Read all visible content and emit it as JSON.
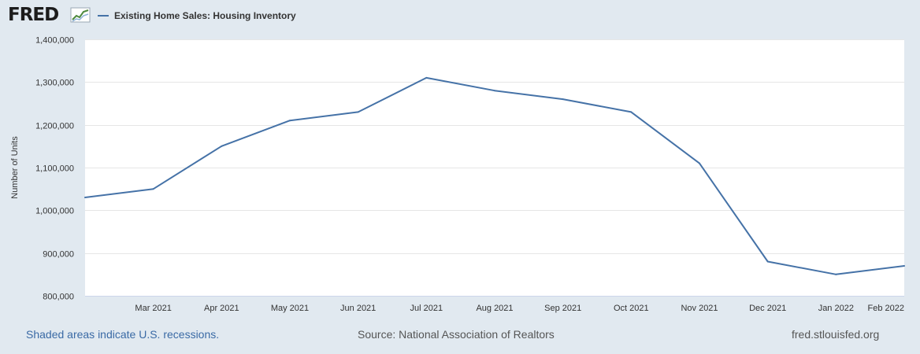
{
  "header": {
    "logo_text": "FRED",
    "logo_icon": "line-chart-icon"
  },
  "colors": {
    "series": "#4572a7",
    "background": "#e1e9f0",
    "plot_background": "#ffffff",
    "gridline": "#e6e6e6",
    "link": "#3a6aa5"
  },
  "chart_data": {
    "type": "line",
    "title": "",
    "xlabel": "",
    "ylabel": "Number of Units",
    "x": [
      "2021-02",
      "2021-03",
      "2021-04",
      "2021-05",
      "2021-06",
      "2021-07",
      "2021-08",
      "2021-09",
      "2021-10",
      "2021-11",
      "2021-12",
      "2022-01",
      "2022-02"
    ],
    "x_tick_labels": [
      "Mar 2021",
      "Apr 2021",
      "May 2021",
      "Jun 2021",
      "Jul 2021",
      "Aug 2021",
      "Sep 2021",
      "Oct 2021",
      "Nov 2021",
      "Dec 2021",
      "Jan 2022",
      "Feb 2022"
    ],
    "series": [
      {
        "name": "Existing Home Sales: Housing Inventory",
        "values": [
          1030000,
          1050000,
          1150000,
          1210000,
          1230000,
          1310000,
          1280000,
          1260000,
          1230000,
          1110000,
          880000,
          850000,
          870000
        ]
      }
    ],
    "ylim": [
      800000,
      1400000
    ],
    "y_ticks": [
      800000,
      900000,
      1000000,
      1100000,
      1200000,
      1300000,
      1400000
    ],
    "y_tick_labels": [
      "800,000",
      "900,000",
      "1,000,000",
      "1,100,000",
      "1,200,000",
      "1,300,000",
      "1,400,000"
    ],
    "grid": true,
    "legend_position": "top-left"
  },
  "footer": {
    "recession_note": "Shaded areas indicate U.S. recessions.",
    "source": "Source: National Association of Realtors",
    "site": "fred.stlouisfed.org"
  }
}
